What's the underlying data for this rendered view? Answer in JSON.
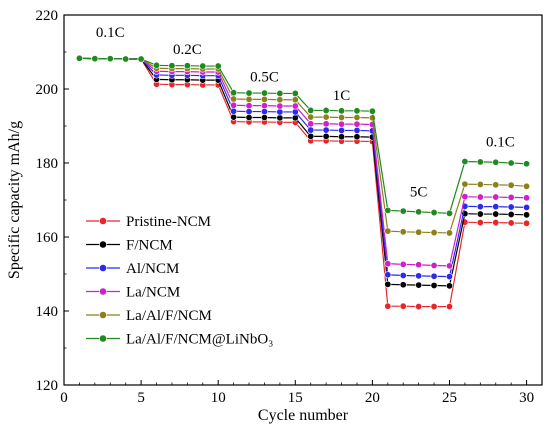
{
  "chart_data": {
    "type": "line",
    "xlabel": "Cycle number",
    "ylabel": "Specific capacity mAh/g",
    "xlim": [
      0,
      31
    ],
    "ylim": [
      120,
      220
    ],
    "xticks": [
      0,
      5,
      10,
      15,
      20,
      25,
      30
    ],
    "yticks": [
      120,
      140,
      160,
      180,
      200,
      220
    ],
    "legend_position": "lower-left",
    "rate_labels": [
      {
        "text": "0.1C",
        "x": 3.0,
        "y": 214
      },
      {
        "text": "0.2C",
        "x": 8.0,
        "y": 209.5
      },
      {
        "text": "0.5C",
        "x": 13.0,
        "y": 202
      },
      {
        "text": "1C",
        "x": 18.0,
        "y": 197
      },
      {
        "text": "5C",
        "x": 23.0,
        "y": 171
      },
      {
        "text": "0.1C",
        "x": 28.3,
        "y": 184.5
      }
    ],
    "x": [
      1,
      2,
      3,
      4,
      5,
      6,
      7,
      8,
      9,
      10,
      11,
      12,
      13,
      14,
      15,
      16,
      17,
      18,
      19,
      20,
      21,
      22,
      23,
      24,
      25,
      26,
      27,
      28,
      29,
      30
    ],
    "series": [
      {
        "name": "Pristine-NCM",
        "color": "#e8262a",
        "values": [
          208.3,
          208.2,
          208.2,
          208.1,
          208.1,
          201.3,
          201.2,
          201.2,
          201.1,
          201.1,
          191.2,
          191.1,
          191.1,
          191.0,
          191.0,
          186.0,
          186.0,
          185.9,
          185.9,
          185.8,
          141.3,
          141.3,
          141.2,
          141.2,
          141.2,
          164.0,
          163.9,
          163.9,
          163.8,
          163.7
        ]
      },
      {
        "name": "F/NCM",
        "color": "#000000",
        "values": [
          208.3,
          208.2,
          208.2,
          208.1,
          208.1,
          202.6,
          202.5,
          202.5,
          202.4,
          202.4,
          192.4,
          192.3,
          192.3,
          192.2,
          192.2,
          187.2,
          187.2,
          187.1,
          187.1,
          187.0,
          147.2,
          147.1,
          147.0,
          146.9,
          146.8,
          166.3,
          166.2,
          166.2,
          166.1,
          166.0
        ]
      },
      {
        "name": "Al/NCM",
        "color": "#2a2af0",
        "values": [
          208.3,
          208.2,
          208.2,
          208.1,
          208.1,
          203.8,
          203.7,
          203.7,
          203.6,
          203.6,
          194.0,
          193.9,
          193.9,
          193.8,
          193.8,
          188.9,
          188.9,
          188.8,
          188.8,
          188.7,
          149.8,
          149.6,
          149.5,
          149.4,
          149.3,
          168.3,
          168.2,
          168.2,
          168.1,
          168.0
        ]
      },
      {
        "name": "La/NCM",
        "color": "#cc22cc",
        "values": [
          208.3,
          208.2,
          208.2,
          208.1,
          208.1,
          204.8,
          204.7,
          204.7,
          204.6,
          204.6,
          195.6,
          195.5,
          195.5,
          195.4,
          195.4,
          190.6,
          190.6,
          190.5,
          190.5,
          190.4,
          152.8,
          152.6,
          152.5,
          152.3,
          152.2,
          170.9,
          170.8,
          170.8,
          170.7,
          170.6
        ]
      },
      {
        "name": "La/Al/F/NCM",
        "color": "#8f7f1a",
        "values": [
          208.3,
          208.2,
          208.2,
          208.1,
          208.1,
          205.6,
          205.5,
          205.5,
          205.4,
          205.4,
          197.3,
          197.2,
          197.2,
          197.1,
          197.1,
          192.4,
          192.4,
          192.3,
          192.3,
          192.2,
          161.6,
          161.4,
          161.3,
          161.2,
          161.1,
          174.3,
          174.2,
          174.1,
          174.0,
          173.7
        ]
      },
      {
        "name": "La/Al/F/NCM@LiNbO₃",
        "color": "#1f8a1f",
        "values": [
          208.3,
          208.2,
          208.2,
          208.1,
          208.1,
          206.4,
          206.3,
          206.3,
          206.2,
          206.2,
          199.0,
          198.9,
          198.9,
          198.8,
          198.8,
          194.2,
          194.2,
          194.1,
          194.1,
          194.0,
          167.2,
          167.0,
          166.8,
          166.6,
          166.4,
          180.4,
          180.3,
          180.2,
          180.0,
          179.8
        ]
      }
    ]
  }
}
